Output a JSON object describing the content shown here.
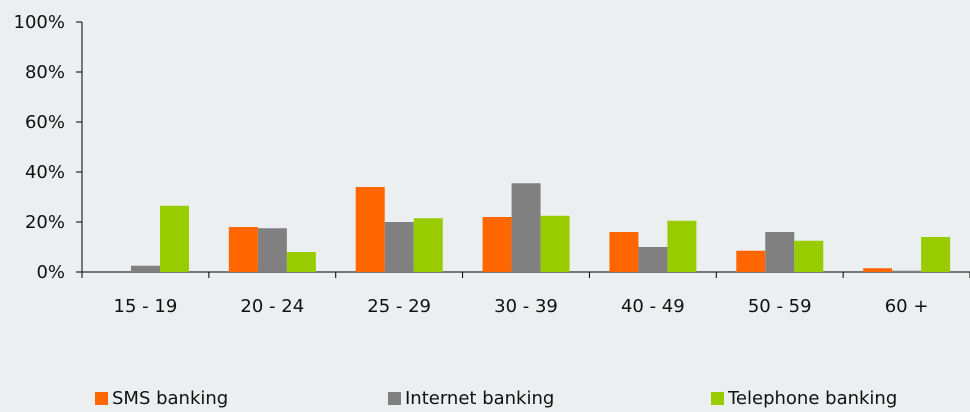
{
  "chart_data": {
    "type": "bar",
    "categories": [
      "15 - 19",
      "20 - 24",
      "25 - 29",
      "30 - 39",
      "40 - 49",
      "50 - 59",
      "60 +"
    ],
    "series": [
      {
        "name": "SMS banking",
        "color": "#ff6600",
        "values": [
          0,
          18,
          34,
          22,
          16,
          8.5,
          1.5
        ]
      },
      {
        "name": "Internet banking",
        "color": "#808080",
        "values": [
          2.5,
          17.5,
          20,
          35.5,
          10,
          16,
          0.5
        ]
      },
      {
        "name": "Telephone banking",
        "color": "#99cc00",
        "values": [
          26.5,
          8,
          21.5,
          22.5,
          20.5,
          12.5,
          14
        ]
      }
    ],
    "ylim": [
      0,
      100
    ],
    "yticks": [
      "0%",
      "20%",
      "40%",
      "60%",
      "80%",
      "100%"
    ],
    "ytick_values": [
      0,
      20,
      40,
      60,
      80,
      100
    ],
    "grid": false,
    "legend_position": "bottom"
  }
}
